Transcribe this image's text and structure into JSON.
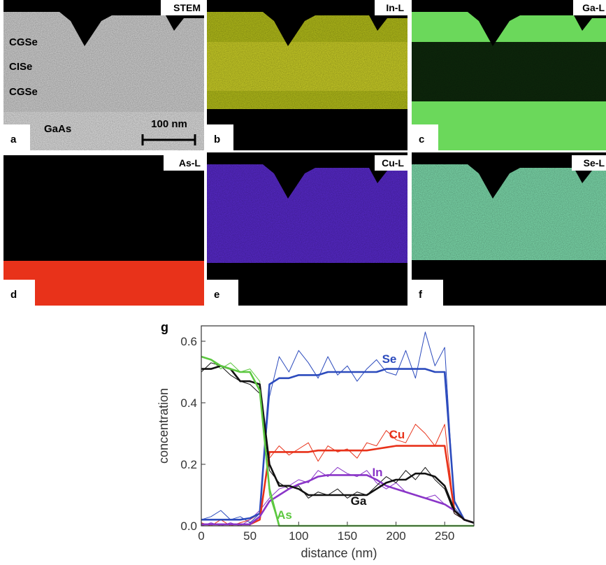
{
  "panels": [
    {
      "letter": "a",
      "label": "STEM",
      "layers": [
        "CGSe",
        "CISe",
        "CGSe"
      ],
      "substrate": "GaAs",
      "scale_bar": "100 nm"
    },
    {
      "letter": "b",
      "label": "In-L"
    },
    {
      "letter": "c",
      "label": "Ga-L"
    },
    {
      "letter": "d",
      "label": "As-L"
    },
    {
      "letter": "e",
      "label": "Cu-L"
    },
    {
      "letter": "f",
      "label": "Se-L"
    }
  ],
  "chart_data": {
    "type": "line",
    "panel_letter": "g",
    "x_label": "distance (nm)",
    "y_label": "concentration",
    "x": [
      0,
      10,
      20,
      30,
      40,
      50,
      60,
      70,
      80,
      90,
      100,
      110,
      120,
      130,
      140,
      150,
      160,
      170,
      180,
      190,
      200,
      210,
      220,
      230,
      240,
      250,
      260,
      270,
      280
    ],
    "xlim": [
      0,
      280
    ],
    "xticks": [
      0,
      50,
      100,
      150,
      200,
      250
    ],
    "ylim": [
      0,
      0.65
    ],
    "yticks": [
      {
        "value": 0,
        "label": "0.0"
      },
      0.2,
      0.4,
      0.6
    ],
    "series": [
      {
        "name": "Se",
        "color": "#2c4bbd",
        "values": [
          0.02,
          0.02,
          0.02,
          0.02,
          0.02,
          0.025,
          0.04,
          0.46,
          0.48,
          0.48,
          0.49,
          0.49,
          0.49,
          0.5,
          0.5,
          0.5,
          0.5,
          0.5,
          0.5,
          0.51,
          0.51,
          0.51,
          0.51,
          0.51,
          0.5,
          0.5,
          0.08,
          0.02,
          0.01
        ],
        "raw": [
          0.02,
          0.03,
          0.05,
          0.02,
          0.03,
          0.01,
          0.04,
          0.42,
          0.55,
          0.5,
          0.57,
          0.53,
          0.48,
          0.55,
          0.49,
          0.52,
          0.47,
          0.51,
          0.54,
          0.5,
          0.49,
          0.57,
          0.48,
          0.63,
          0.52,
          0.58,
          0.06,
          0.02,
          0.01
        ]
      },
      {
        "name": "Cu",
        "color": "#e8321a",
        "values": [
          0.005,
          0.005,
          0.005,
          0.005,
          0.005,
          0.005,
          0.02,
          0.24,
          0.24,
          0.24,
          0.24,
          0.24,
          0.245,
          0.245,
          0.245,
          0.245,
          0.245,
          0.245,
          0.25,
          0.255,
          0.26,
          0.26,
          0.26,
          0.26,
          0.26,
          0.26,
          0.05,
          0.02,
          0.01
        ],
        "raw": [
          0.01,
          0,
          0.02,
          0,
          0.01,
          0.02,
          0.04,
          0.22,
          0.26,
          0.23,
          0.25,
          0.27,
          0.21,
          0.26,
          0.24,
          0.25,
          0.22,
          0.27,
          0.26,
          0.31,
          0.28,
          0.27,
          0.33,
          0.3,
          0.26,
          0.33,
          0.04,
          0.02,
          0.01
        ]
      },
      {
        "name": "In",
        "color": "#8a35c8",
        "values": [
          0.005,
          0.005,
          0.005,
          0.005,
          0.005,
          0.005,
          0.03,
          0.08,
          0.1,
          0.12,
          0.135,
          0.145,
          0.16,
          0.165,
          0.165,
          0.165,
          0.165,
          0.165,
          0.15,
          0.13,
          0.12,
          0.11,
          0.1,
          0.09,
          0.08,
          0.07,
          0.05,
          0.02,
          0.01
        ],
        "raw": [
          0,
          0.01,
          0,
          0.01,
          0,
          0.02,
          0.05,
          0.09,
          0.12,
          0.13,
          0.15,
          0.14,
          0.18,
          0.16,
          0.19,
          0.17,
          0.16,
          0.18,
          0.14,
          0.12,
          0.14,
          0.11,
          0.1,
          0.09,
          0.1,
          0.07,
          0.05,
          0.02,
          0.01
        ]
      },
      {
        "name": "Ga",
        "color": "#111111",
        "values": [
          0.51,
          0.51,
          0.52,
          0.51,
          0.47,
          0.47,
          0.46,
          0.2,
          0.13,
          0.13,
          0.12,
          0.1,
          0.1,
          0.1,
          0.1,
          0.1,
          0.1,
          0.1,
          0.12,
          0.14,
          0.15,
          0.15,
          0.17,
          0.17,
          0.16,
          0.13,
          0.05,
          0.02,
          0.01
        ],
        "raw": [
          0.5,
          0.53,
          0.52,
          0.49,
          0.47,
          0.46,
          0.43,
          0.18,
          0.14,
          0.12,
          0.13,
          0.09,
          0.11,
          0.1,
          0.12,
          0.09,
          0.11,
          0.1,
          0.13,
          0.16,
          0.14,
          0.18,
          0.15,
          0.19,
          0.15,
          0.12,
          0.04,
          0.02,
          0.01
        ]
      },
      {
        "name": "As",
        "color": "#5cc840",
        "values": [
          0.55,
          0.54,
          0.52,
          0.51,
          0.5,
          0.5,
          0.44,
          0.12,
          0,
          0,
          0,
          0,
          0,
          0,
          0,
          0,
          0,
          0,
          0,
          0,
          0,
          0,
          0,
          0,
          0,
          0,
          0,
          0,
          0
        ],
        "raw": [
          0.55,
          0.54,
          0.51,
          0.53,
          0.5,
          0.51,
          0.47,
          0.1,
          0,
          0,
          0,
          0,
          0,
          0,
          0,
          0,
          0,
          0,
          0,
          0,
          0,
          0,
          0,
          0,
          0,
          0,
          0,
          0,
          0
        ]
      }
    ]
  }
}
